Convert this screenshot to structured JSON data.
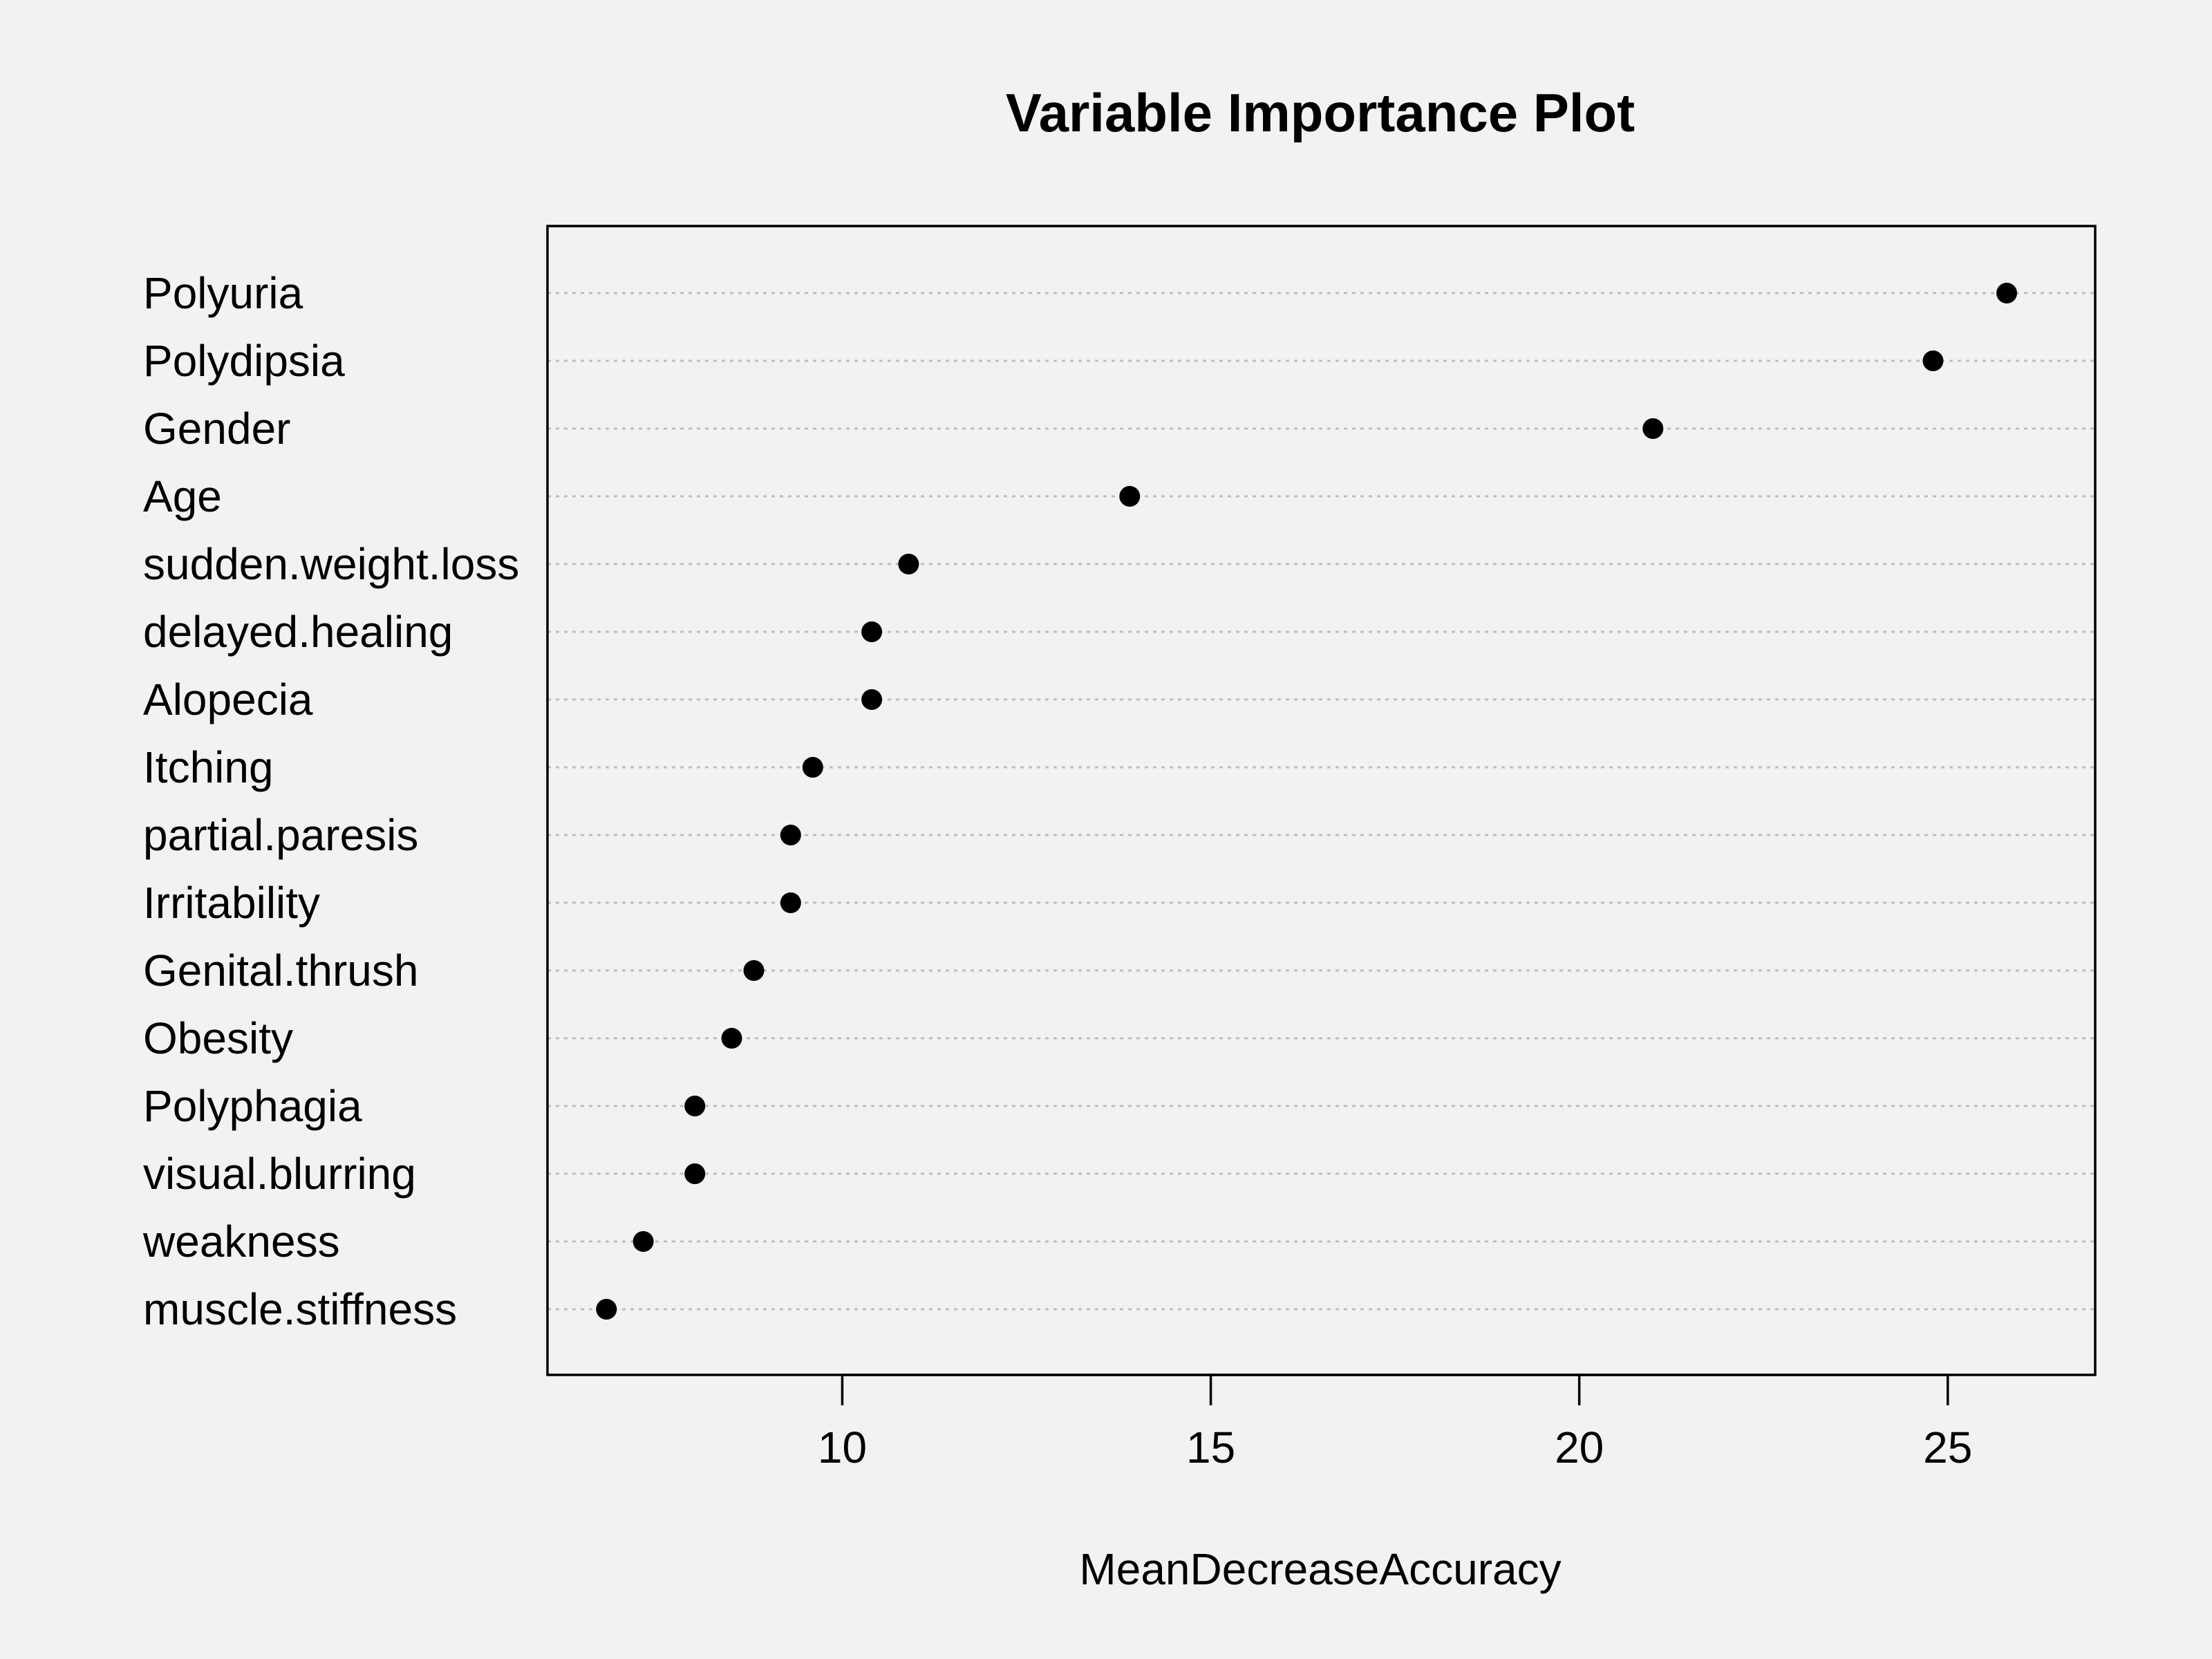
{
  "chart_data": {
    "type": "scatter",
    "title": "Variable Importance Plot",
    "xlabel": "MeanDecreaseAccuracy",
    "ylabel": "",
    "xlim": [
      6.0,
      27.0
    ],
    "xticks": [
      10,
      15,
      20,
      25
    ],
    "xtick_labels": [
      "10",
      "15",
      "20",
      "25"
    ],
    "grid": "dotted horizontal",
    "categories": [
      "Polyuria",
      "Polydipsia",
      "Gender",
      "Age",
      "sudden.weight.loss",
      "delayed.healing",
      "Alopecia",
      "Itching",
      "partial.paresis",
      "Irritability",
      "Genital.thrush",
      "Obesity",
      "Polyphagia",
      "visual.blurring",
      "weakness",
      "muscle.stiffness"
    ],
    "values": [
      25.8,
      24.8,
      21.0,
      13.9,
      10.9,
      10.4,
      10.4,
      9.6,
      9.3,
      9.3,
      8.8,
      8.5,
      8.0,
      8.0,
      7.3,
      6.8
    ]
  }
}
